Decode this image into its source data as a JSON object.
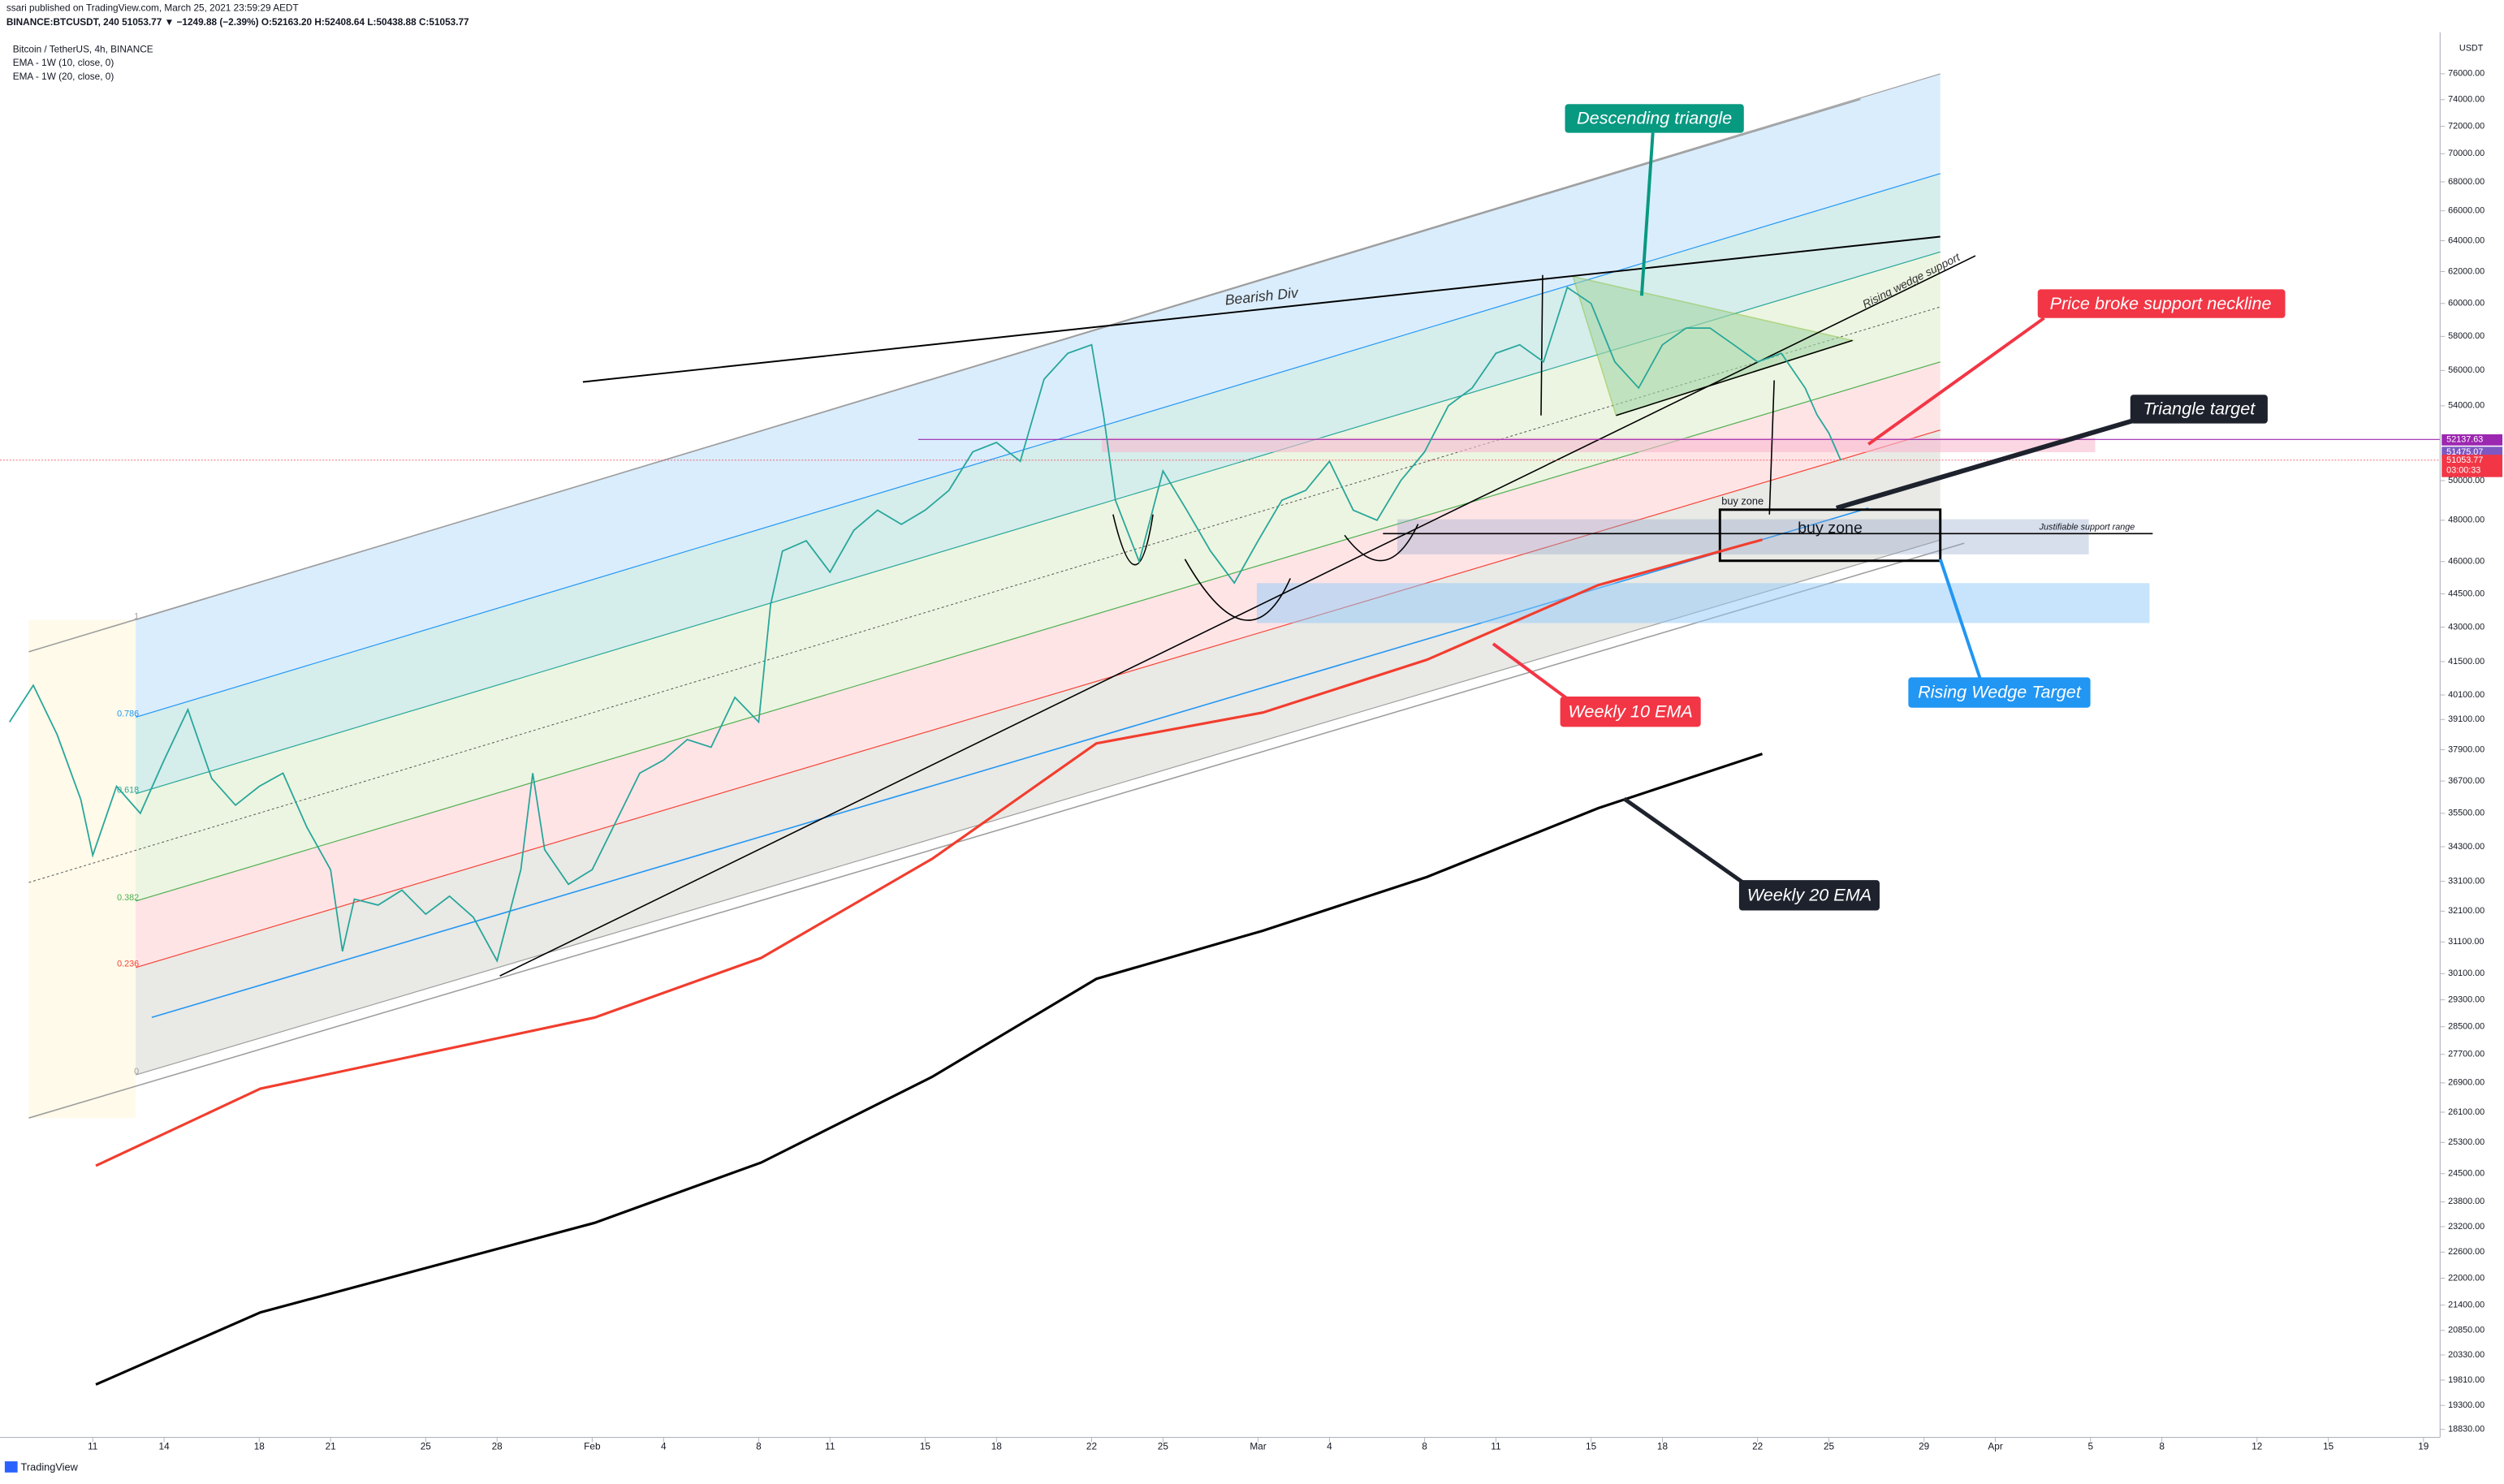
{
  "header": {
    "publisher": "ssari published on TradingView.com, March 25, 2021 23:59:29 AEDT",
    "quote": "BINANCE:BTCUSDT, 240  51053.77 ▼ −1249.88 (−2.39%) O:52163.20 H:52408.64 L:50438.88 C:51053.77",
    "logo": "TradingView",
    "currency": "USDT"
  },
  "chart_data": {
    "type": "line",
    "log_scale": true,
    "xlim": [
      -3.9,
      98.7
    ],
    "xticks": [
      {
        "value": 0,
        "label": "11"
      },
      {
        "value": 3,
        "label": "14"
      },
      {
        "value": 7,
        "label": "18"
      },
      {
        "value": 10,
        "label": "21"
      },
      {
        "value": 14,
        "label": "25"
      },
      {
        "value": 17,
        "label": "28"
      },
      {
        "value": 21,
        "label": "Feb"
      },
      {
        "value": 24,
        "label": "4"
      },
      {
        "value": 28,
        "label": "8"
      },
      {
        "value": 31,
        "label": "11"
      },
      {
        "value": 35,
        "label": "15"
      },
      {
        "value": 38,
        "label": "18"
      },
      {
        "value": 42,
        "label": "22"
      },
      {
        "value": 45,
        "label": "25"
      },
      {
        "value": 49,
        "label": "Mar"
      },
      {
        "value": 52,
        "label": "4"
      },
      {
        "value": 56,
        "label": "8"
      },
      {
        "value": 59,
        "label": "11"
      },
      {
        "value": 63,
        "label": "15"
      },
      {
        "value": 66,
        "label": "18"
      },
      {
        "value": 70,
        "label": "22"
      },
      {
        "value": 73,
        "label": "25"
      },
      {
        "value": 77,
        "label": "29"
      },
      {
        "value": 80,
        "label": "Apr"
      },
      {
        "value": 84,
        "label": "5"
      },
      {
        "value": 87,
        "label": "8"
      },
      {
        "value": 91,
        "label": "12"
      },
      {
        "value": 94,
        "label": "15"
      },
      {
        "value": 98,
        "label": "19"
      }
    ],
    "ylim": [
      18830,
      76000
    ],
    "yticks": [
      {
        "value": 76000,
        "label": "76000.00"
      },
      {
        "value": 74000,
        "label": "74000.00"
      },
      {
        "value": 72000,
        "label": "72000.00"
      },
      {
        "value": 70000,
        "label": "70000.00"
      },
      {
        "value": 68000,
        "label": "68000.00"
      },
      {
        "value": 66000,
        "label": "66000.00"
      },
      {
        "value": 64000,
        "label": "64000.00"
      },
      {
        "value": 62000,
        "label": "62000.00"
      },
      {
        "value": 60000,
        "label": "60000.00"
      },
      {
        "value": 58000,
        "label": "58000.00"
      },
      {
        "value": 56000,
        "label": "56000.00"
      },
      {
        "value": 54000,
        "label": "54000.00"
      },
      {
        "value": 50000,
        "label": "50000.00"
      },
      {
        "value": 48000,
        "label": "48000.00"
      },
      {
        "value": 46000,
        "label": "46000.00"
      },
      {
        "value": 44500,
        "label": "44500.00"
      },
      {
        "value": 43000,
        "label": "43000.00"
      },
      {
        "value": 41500,
        "label": "41500.00"
      },
      {
        "value": 40100,
        "label": "40100.00"
      },
      {
        "value": 39100,
        "label": "39100.00"
      },
      {
        "value": 37900,
        "label": "37900.00"
      },
      {
        "value": 36700,
        "label": "36700.00"
      },
      {
        "value": 35500,
        "label": "35500.00"
      },
      {
        "value": 34300,
        "label": "34300.00"
      },
      {
        "value": 33100,
        "label": "33100.00"
      },
      {
        "value": 32100,
        "label": "32100.00"
      },
      {
        "value": 31100,
        "label": "31100.00"
      },
      {
        "value": 30100,
        "label": "30100.00"
      },
      {
        "value": 29300,
        "label": "29300.00"
      },
      {
        "value": 28500,
        "label": "28500.00"
      },
      {
        "value": 27700,
        "label": "27700.00"
      },
      {
        "value": 26900,
        "label": "26900.00"
      },
      {
        "value": 26100,
        "label": "26100.00"
      },
      {
        "value": 25300,
        "label": "25300.00"
      },
      {
        "value": 24500,
        "label": "24500.00"
      },
      {
        "value": 23800,
        "label": "23800.00"
      },
      {
        "value": 23200,
        "label": "23200.00"
      },
      {
        "value": 22600,
        "label": "22600.00"
      },
      {
        "value": 22000,
        "label": "22000.00"
      },
      {
        "value": 21400,
        "label": "21400.00"
      },
      {
        "value": 20850,
        "label": "20850.00"
      },
      {
        "value": 20330,
        "label": "20330.00"
      },
      {
        "value": 19810,
        "label": "19810.00"
      },
      {
        "value": 19300,
        "label": "19300.00"
      },
      {
        "value": 18830,
        "label": "18830.00"
      }
    ],
    "series": [
      {
        "name": "Bitcoin / TetherUS, 4h, BINANCE",
        "color": "#26a69a",
        "x": [
          -3.5,
          -2.5,
          -1.5,
          -0.5,
          0,
          1,
          2,
          3,
          4,
          5,
          6,
          7,
          8,
          9,
          10,
          10.5,
          11,
          12,
          13,
          14,
          15,
          16,
          17,
          18,
          18.5,
          19,
          20,
          21,
          22,
          23,
          24,
          25,
          26,
          27,
          28,
          28.5,
          29,
          30,
          31,
          32,
          33,
          34,
          35,
          36,
          37,
          38,
          39,
          40,
          41,
          42,
          42.5,
          43,
          44,
          45,
          46,
          47,
          48,
          49,
          50,
          51,
          52,
          53,
          54,
          55,
          56,
          57,
          58,
          59,
          60,
          61,
          62,
          63,
          64,
          65,
          66,
          67,
          68,
          69,
          70,
          71,
          72,
          72.5,
          73,
          73.5
        ],
        "values": [
          39000,
          40500,
          38500,
          36000,
          34000,
          36500,
          35500,
          37500,
          39500,
          36800,
          35800,
          36500,
          37000,
          35000,
          33500,
          30800,
          32500,
          32300,
          32800,
          32000,
          32600,
          31900,
          30500,
          33500,
          37000,
          34200,
          33000,
          33500,
          35200,
          37000,
          37500,
          38300,
          38000,
          40000,
          39000,
          44000,
          46500,
          47000,
          45500,
          47500,
          48500,
          47800,
          48500,
          49500,
          51500,
          52000,
          51000,
          55500,
          57000,
          57500,
          53500,
          49000,
          46000,
          50500,
          48500,
          46500,
          45000,
          47000,
          49000,
          49500,
          51000,
          48500,
          48000,
          50000,
          51500,
          54000,
          55000,
          57000,
          57500,
          56500,
          61000,
          60000,
          56500,
          55000,
          57500,
          58500,
          58500,
          57500,
          56500,
          57000,
          55000,
          53500,
          52500,
          51053.77
        ]
      },
      {
        "name": "EMA - 1W (10, close, 0)",
        "color": "#f23d2e",
        "x": [
          0.13,
          7.05,
          21.1,
          28.1,
          35.3,
          42.2,
          49.2,
          56.1,
          63.3,
          70.2
        ],
        "values": [
          24700,
          26740,
          28770,
          30590,
          33880,
          38150,
          39380,
          41580,
          44900,
          47050
        ]
      },
      {
        "name": "EMA - 1W (20, close, 0)",
        "color": "#000000",
        "x": [
          0.13,
          7.05,
          21.1,
          28.1,
          35.3,
          42.2,
          49.2,
          56.1,
          63.3,
          70.2
        ],
        "values": [
          19720,
          21240,
          23290,
          24780,
          27070,
          29940,
          31460,
          33250,
          35690,
          37740
        ]
      }
    ],
    "price_labels": [
      {
        "value": 52137.63,
        "color": "#9c27b0"
      },
      {
        "value": 51475.07,
        "color": "#7e57c2"
      },
      {
        "value": 51053.77,
        "color": "#f23645",
        "countdown": "03:00:33"
      }
    ],
    "fib_levels": [
      1,
      0.786,
      0.618,
      0.382,
      0.236,
      0
    ],
    "annotations": [
      "Descending triangle",
      "Bearish Div",
      "Rising wedge support",
      "Price broke support neckline",
      "Triangle target",
      "buy zone",
      "buy zone",
      "Justifiable support range",
      "Rising Wedge Target",
      "Weekly 10 EMA",
      "Weekly 20 EMA"
    ]
  }
}
